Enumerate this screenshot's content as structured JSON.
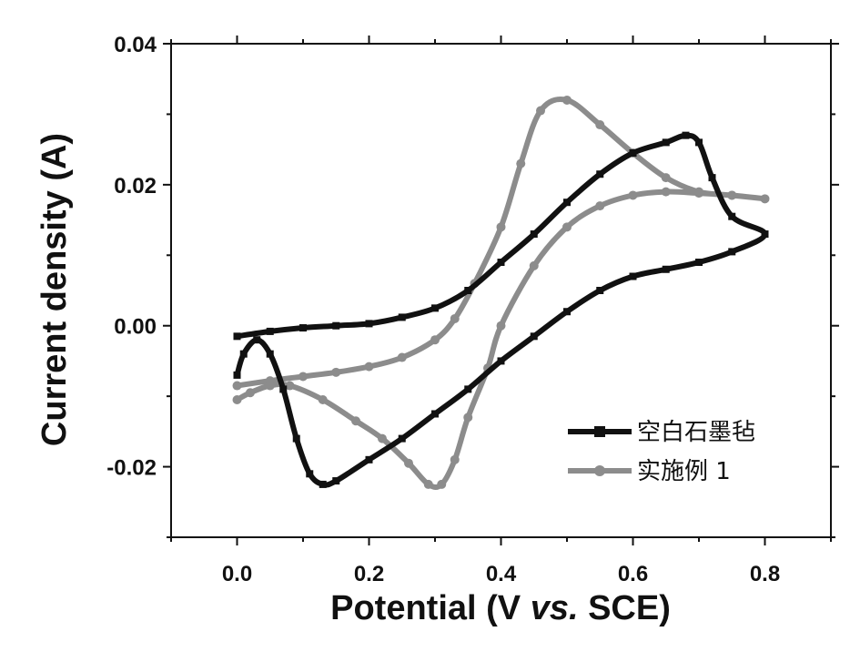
{
  "chart_data": {
    "type": "line",
    "xlabel_prefix": "Potential (V ",
    "xlabel_italic": "vs.",
    "xlabel_suffix": " SCE)",
    "ylabel": "Current density (A)",
    "xlim": [
      -0.1,
      0.9
    ],
    "ylim": [
      -0.03,
      0.04
    ],
    "xticks": [
      0.0,
      0.2,
      0.4,
      0.6,
      0.8
    ],
    "xtick_labels": [
      "0.0",
      "0.2",
      "0.4",
      "0.6",
      "0.8"
    ],
    "yticks": [
      -0.02,
      0.0,
      0.02,
      0.04
    ],
    "ytick_labels": [
      "-0.02",
      "0.00",
      "0.02",
      "0.04"
    ],
    "legend_position": "lower-right",
    "series": [
      {
        "name": "空白石墨毡",
        "color": "#111111",
        "marker": "square",
        "x": [
          0.0,
          0.05,
          0.1,
          0.15,
          0.2,
          0.25,
          0.3,
          0.35,
          0.4,
          0.45,
          0.5,
          0.55,
          0.6,
          0.65,
          0.68,
          0.7,
          0.72,
          0.75,
          0.8,
          0.75,
          0.7,
          0.65,
          0.6,
          0.55,
          0.5,
          0.45,
          0.4,
          0.35,
          0.3,
          0.25,
          0.2,
          0.15,
          0.13,
          0.11,
          0.09,
          0.07,
          0.05,
          0.03,
          0.01,
          0.0
        ],
        "y": [
          -0.0015,
          -0.0008,
          -0.0003,
          0.0,
          0.0003,
          0.0012,
          0.0025,
          0.005,
          0.009,
          0.013,
          0.0175,
          0.0215,
          0.0245,
          0.026,
          0.027,
          0.026,
          0.021,
          0.0155,
          0.013,
          0.0105,
          0.009,
          0.008,
          0.007,
          0.005,
          0.002,
          -0.0015,
          -0.005,
          -0.009,
          -0.0125,
          -0.016,
          -0.019,
          -0.022,
          -0.0225,
          -0.021,
          -0.016,
          -0.009,
          -0.004,
          -0.002,
          -0.004,
          -0.007
        ]
      },
      {
        "name": "实施例 1",
        "color": "#8c8c8c",
        "marker": "circle",
        "x": [
          0.0,
          0.05,
          0.1,
          0.15,
          0.2,
          0.25,
          0.3,
          0.33,
          0.36,
          0.4,
          0.43,
          0.46,
          0.5,
          0.55,
          0.6,
          0.65,
          0.7,
          0.75,
          0.8,
          0.75,
          0.7,
          0.65,
          0.6,
          0.55,
          0.5,
          0.45,
          0.4,
          0.38,
          0.35,
          0.33,
          0.31,
          0.29,
          0.26,
          0.22,
          0.18,
          0.13,
          0.08,
          0.05,
          0.02,
          0.0
        ],
        "y": [
          -0.0085,
          -0.0078,
          -0.0072,
          -0.0066,
          -0.0058,
          -0.0045,
          -0.002,
          0.001,
          0.006,
          0.014,
          0.023,
          0.0305,
          0.032,
          0.0285,
          0.0245,
          0.021,
          0.019,
          0.0185,
          0.018,
          0.0185,
          0.0188,
          0.019,
          0.0185,
          0.017,
          0.014,
          0.0085,
          0.0,
          -0.006,
          -0.013,
          -0.019,
          -0.0225,
          -0.0225,
          -0.0195,
          -0.016,
          -0.0135,
          -0.0105,
          -0.0085,
          -0.0085,
          -0.0095,
          -0.0105
        ]
      }
    ]
  }
}
